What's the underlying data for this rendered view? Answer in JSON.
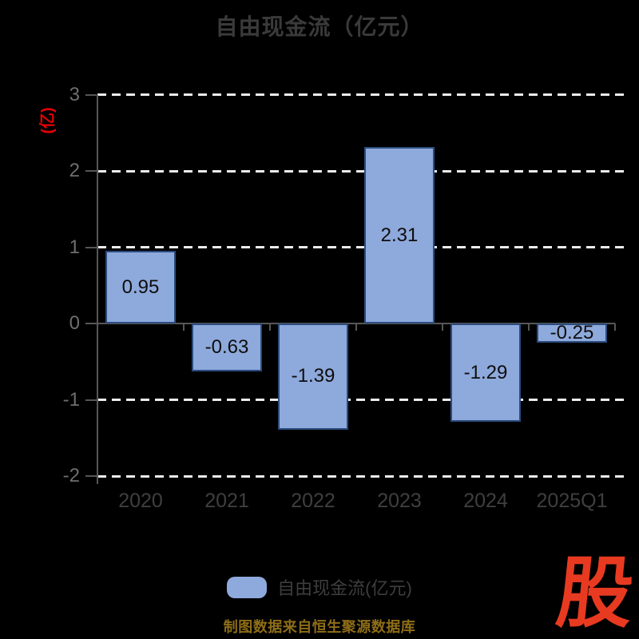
{
  "page": {
    "background": "#000000"
  },
  "chart_data": {
    "type": "bar",
    "title": "自由现金流（亿元）",
    "ylabel": "(亿)",
    "xlabel": "",
    "categories": [
      "2020",
      "2021",
      "2022",
      "2023",
      "2024",
      "2025Q1"
    ],
    "values": [
      0.95,
      -0.63,
      -1.39,
      2.31,
      -1.29,
      -0.25
    ],
    "value_labels": [
      "0.95",
      "-0.63",
      "-1.39",
      "2.31",
      "-1.29",
      "-0.25"
    ],
    "y_ticks": [
      3,
      2,
      1,
      0,
      -1,
      -2
    ],
    "y_tick_labels": [
      "3",
      "2",
      "1",
      "0",
      "-1",
      "-2"
    ],
    "ylim": [
      -2,
      3
    ],
    "grid": "dashed-horizontal",
    "legend_position": "bottom",
    "legend": [
      {
        "label": "自由现金流(亿元)",
        "color": "#8EA9DB"
      }
    ],
    "colors": {
      "bar_fill": "#8EA9DB",
      "bar_border": "#2B4C7E",
      "gridline": "#ECECEC",
      "axis": "#565656",
      "title_text": "#3A3A3A",
      "x_tick_label": "#3F3F3F",
      "y_tick_label": "#6E6E6E",
      "value_label": "#0D0D0D",
      "y_axis_name": "#E60000",
      "background": "#000000"
    }
  },
  "footer": {
    "note": "制图数据来自恒生聚源数据库",
    "note_color": "#8E6D17",
    "logo_text": "股",
    "logo_color": "#E83A20"
  }
}
